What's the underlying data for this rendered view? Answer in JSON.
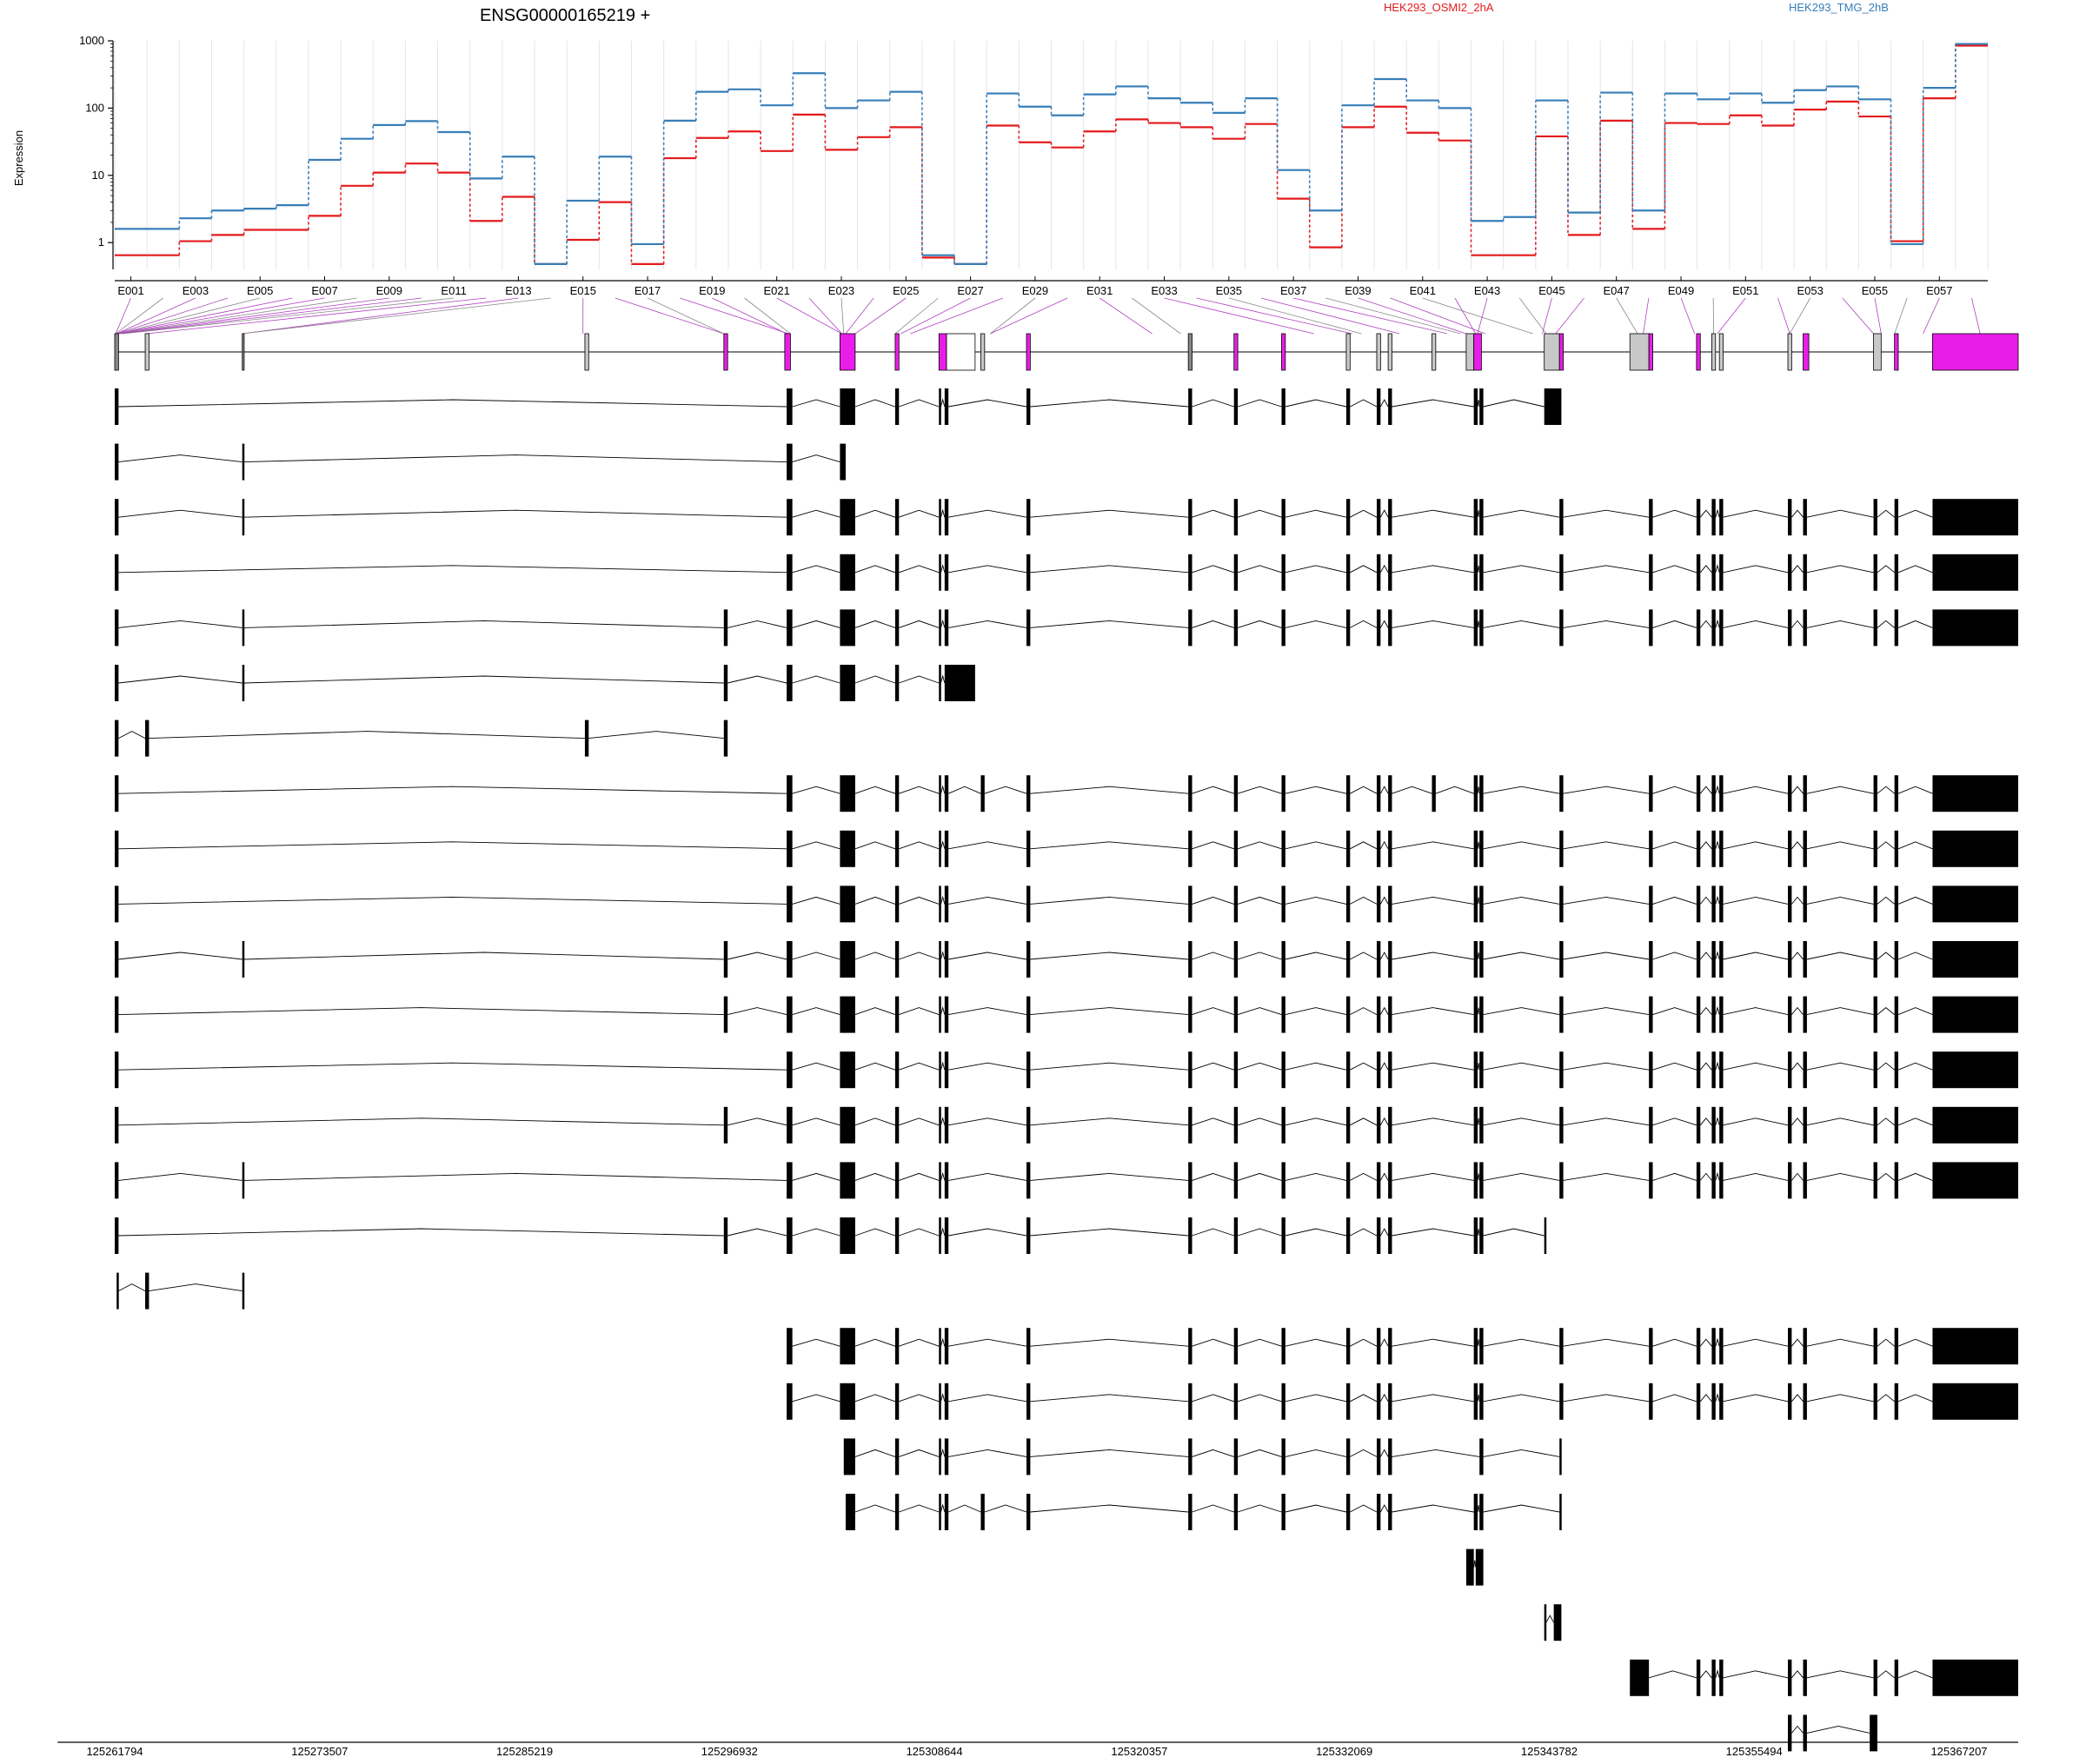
{
  "chart_data": {
    "type": "line",
    "title": "ENSG00000165219 +",
    "ylabel": "Expression",
    "y_scale": "log",
    "ylim": [
      0.4,
      1000
    ],
    "y_ticks": [
      "1",
      "10",
      "100",
      "1000"
    ],
    "legend_position": "top-right",
    "exon_labels_shown": [
      "E001",
      "E003",
      "E005",
      "E007",
      "E009",
      "E011",
      "E013",
      "E015",
      "E017",
      "E019",
      "E021",
      "E023",
      "E025",
      "E027",
      "E029",
      "E031",
      "E033",
      "E035",
      "E037",
      "E039",
      "E041",
      "E043",
      "E045",
      "E047",
      "E049",
      "E051",
      "E053",
      "E055",
      "E057"
    ],
    "coordinate_ticks": [
      "125261794",
      "125273507",
      "125285219",
      "125296932",
      "125308644",
      "125320357",
      "125332069",
      "125343782",
      "125355494",
      "125367207"
    ],
    "series": [
      {
        "name": "HEK293_OSMI2_2hA",
        "color": "#e41a1c",
        "values": [
          0.65,
          0.65,
          1.05,
          1.3,
          1.55,
          1.55,
          2.5,
          7,
          11,
          15,
          11,
          2.1,
          4.8,
          0.48,
          1.1,
          4,
          0.48,
          18,
          36,
          45,
          23,
          80,
          24,
          37,
          52,
          0.6,
          0.48,
          55,
          31,
          26,
          45,
          68,
          60,
          52,
          35,
          58,
          4.5,
          0.85,
          52,
          105,
          43,
          33,
          0.65,
          0.65,
          38,
          1.3,
          65,
          1.6,
          60,
          58,
          78,
          55,
          95,
          125,
          75,
          1.05,
          140,
          850
        ]
      },
      {
        "name": "HEK293_TMG_2hB",
        "color": "#377eb8",
        "values": [
          1.6,
          1.6,
          2.3,
          3,
          3.2,
          3.6,
          17,
          35,
          56,
          64,
          44,
          9,
          19,
          0.48,
          4.2,
          19,
          0.95,
          65,
          175,
          190,
          110,
          330,
          100,
          130,
          175,
          0.65,
          0.48,
          165,
          105,
          78,
          160,
          210,
          140,
          120,
          85,
          140,
          12,
          3,
          110,
          270,
          130,
          100,
          2.1,
          2.4,
          130,
          2.8,
          170,
          3,
          165,
          135,
          165,
          120,
          185,
          210,
          135,
          0.95,
          200,
          900
        ]
      }
    ]
  }
}
